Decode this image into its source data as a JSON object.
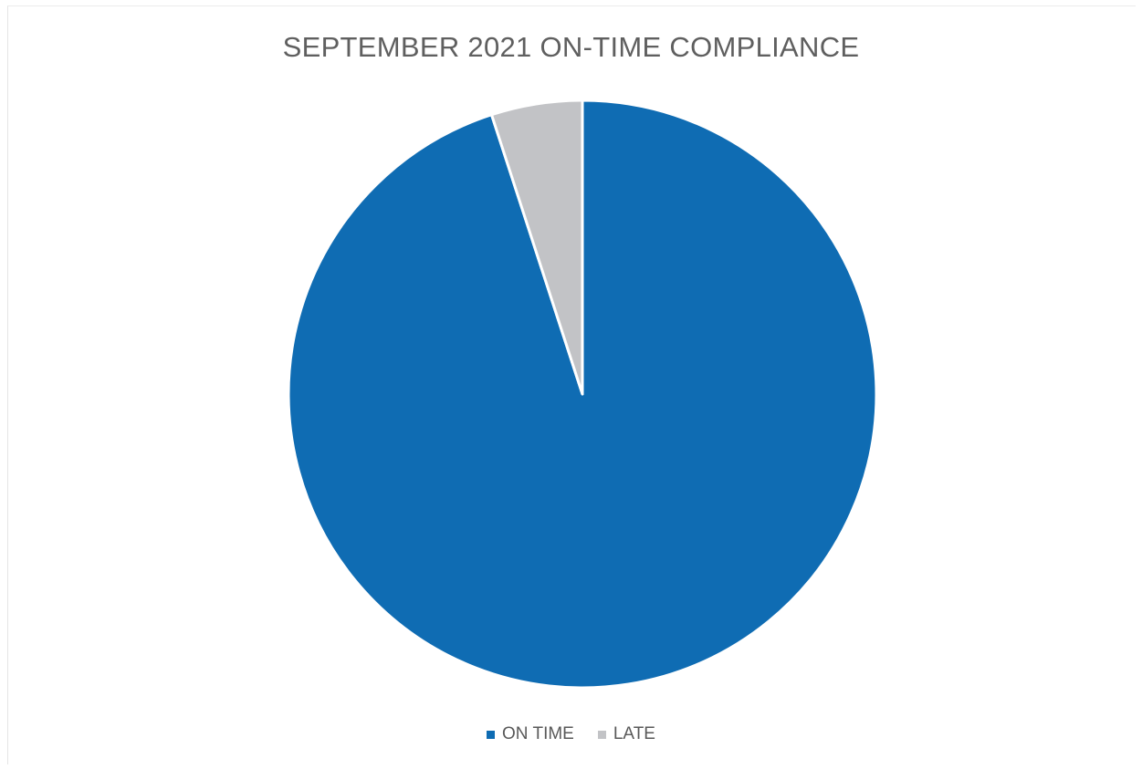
{
  "chart_data": {
    "type": "pie",
    "title": "SEPTEMBER 2021 ON-TIME COMPLIANCE",
    "series": [
      {
        "name": "ON TIME",
        "value": 95,
        "color": "#0f6cb3"
      },
      {
        "name": "LATE",
        "value": 5,
        "color": "#c2c3c6"
      }
    ],
    "legend": "bottom"
  }
}
